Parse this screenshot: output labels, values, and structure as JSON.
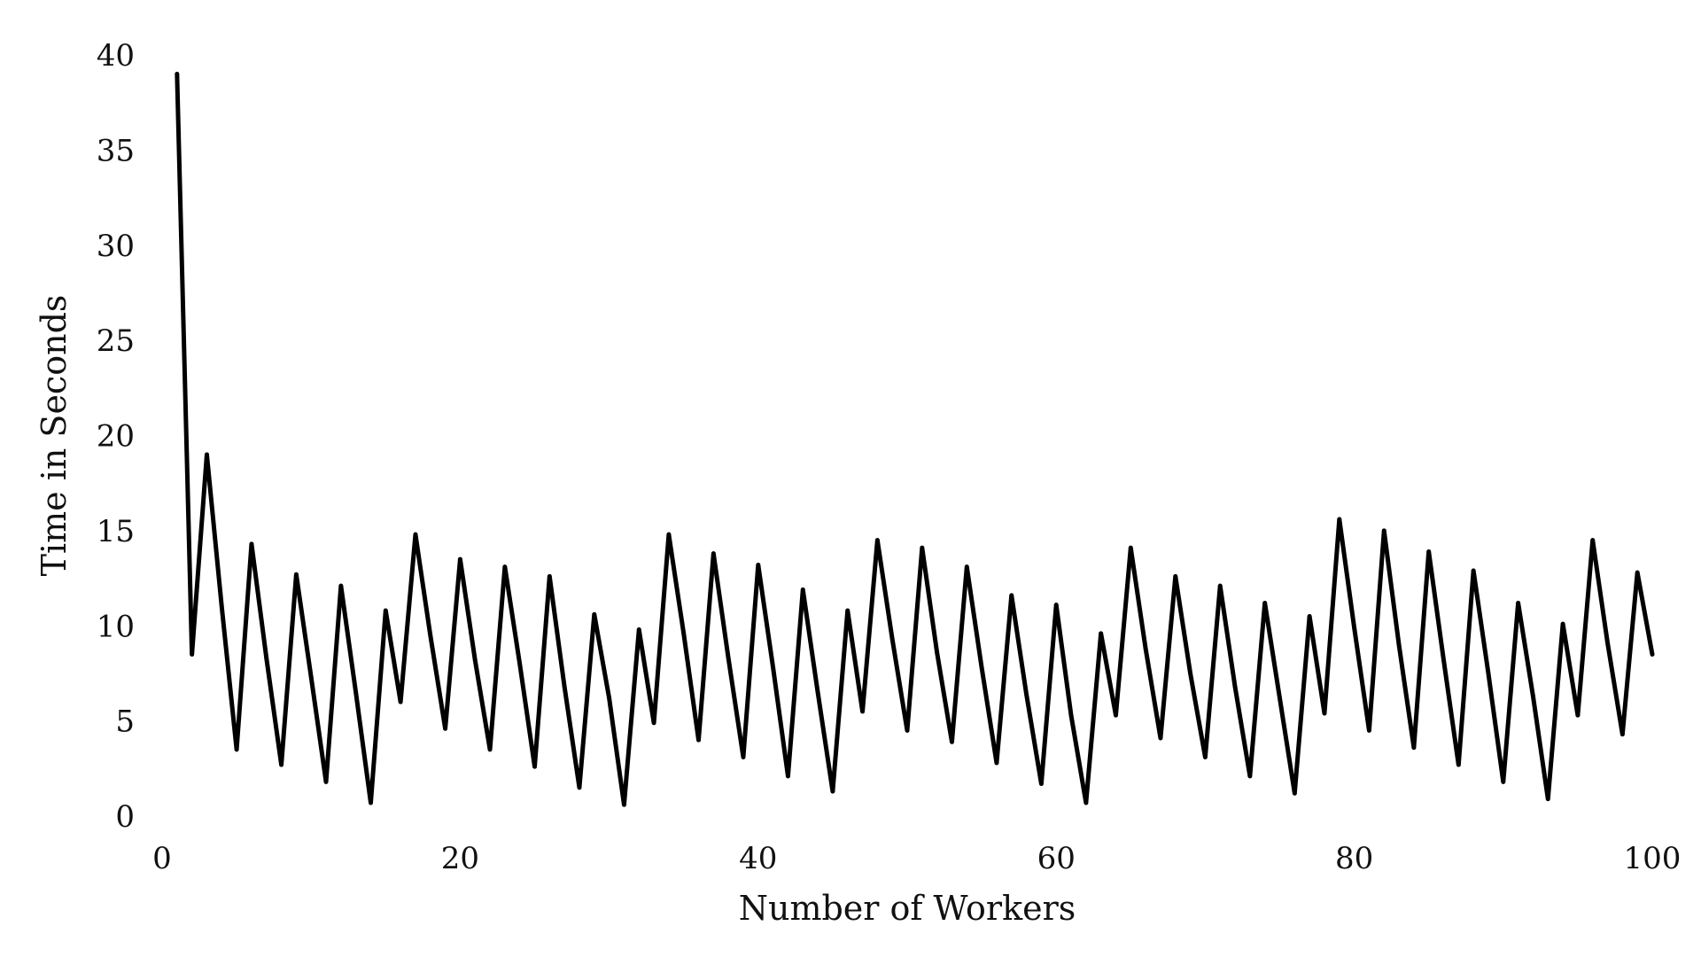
{
  "chart_data": {
    "type": "line",
    "title": "",
    "xlabel": "Number of Workers",
    "ylabel": "Time in Seconds",
    "xlim": [
      0,
      100
    ],
    "ylim": [
      0,
      40
    ],
    "xticks": [
      0,
      20,
      40,
      60,
      80,
      100
    ],
    "yticks": [
      0,
      5,
      10,
      15,
      20,
      25,
      30,
      35,
      40
    ],
    "grid": false,
    "legend": "none",
    "line_color": "#000000",
    "series": [
      {
        "x": [
          1,
          2,
          3,
          4,
          5,
          6,
          7,
          8,
          9,
          10,
          11,
          12,
          13,
          14,
          15,
          16,
          17,
          18,
          19,
          20,
          21,
          22,
          23,
          24,
          25,
          26,
          27,
          28,
          29,
          30,
          31,
          32,
          33,
          34,
          35,
          36,
          37,
          38,
          39,
          40,
          41,
          42,
          43,
          44,
          45,
          46,
          47,
          48,
          49,
          50,
          51,
          52,
          53,
          54,
          55,
          56,
          57,
          58,
          59,
          60,
          61,
          62,
          63,
          64,
          65,
          66,
          67,
          68,
          69,
          70,
          71,
          72,
          73,
          74,
          75,
          76,
          77,
          78,
          79,
          80,
          81,
          82,
          83,
          84,
          85,
          86,
          87,
          88,
          89,
          90,
          91,
          92,
          93,
          94,
          95,
          96,
          97,
          98,
          99,
          100
        ],
        "values": [
          39,
          8.5,
          19,
          11,
          3.5,
          14.3,
          8.3,
          2.7,
          12.7,
          7.3,
          1.8,
          12.1,
          6.5,
          0.7,
          10.8,
          6,
          14.8,
          9.5,
          4.6,
          13.5,
          8.2,
          3.5,
          13.1,
          8,
          2.6,
          12.6,
          6.8,
          1.5,
          10.6,
          6.2,
          0.6,
          9.8,
          4.9,
          14.8,
          9.6,
          4,
          13.8,
          8.3,
          3.1,
          13.2,
          7.8,
          2.1,
          11.9,
          6.5,
          1.3,
          10.8,
          5.5,
          14.5,
          9.3,
          4.5,
          14.1,
          8.6,
          3.9,
          13.1,
          7.8,
          2.8,
          11.6,
          6.4,
          1.7,
          11.1,
          5.3,
          0.7,
          9.6,
          5.3,
          14.1,
          8.8,
          4.1,
          12.6,
          7.5,
          3.1,
          12.1,
          6.8,
          2.1,
          11.2,
          6.2,
          1.2,
          10.5,
          5.4,
          15.6,
          9.9,
          4.5,
          15,
          9,
          3.6,
          13.9,
          8.2,
          2.7,
          12.9,
          7.5,
          1.8,
          11.2,
          6.3,
          0.9,
          10.1,
          5.3,
          14.5,
          9.1,
          4.3,
          12.8,
          8.5
        ]
      }
    ]
  }
}
